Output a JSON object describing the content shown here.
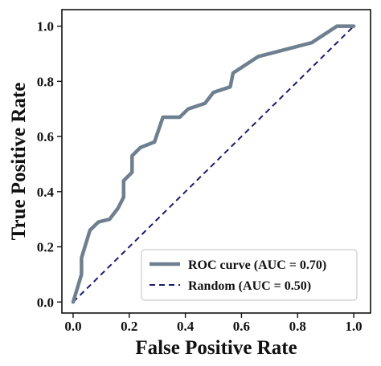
{
  "chart_data": {
    "type": "line",
    "xlabel": "False Positive Rate",
    "ylabel": "True Positive Rate",
    "xlim": [
      -0.04,
      1.06
    ],
    "ylim": [
      -0.04,
      1.06
    ],
    "xticks": [
      "0.0",
      "0.2",
      "0.4",
      "0.6",
      "0.8",
      "1.0"
    ],
    "yticks": [
      "0.0",
      "0.2",
      "0.4",
      "0.6",
      "0.8",
      "1.0"
    ],
    "grid": false,
    "legend_position": "lower-right",
    "series": [
      {
        "name": "ROC curve (AUC = 0.70)",
        "color": "#6e7f8f",
        "style": "solid",
        "x": [
          0.0,
          0.03,
          0.03,
          0.06,
          0.09,
          0.13,
          0.16,
          0.18,
          0.18,
          0.21,
          0.21,
          0.24,
          0.29,
          0.32,
          0.38,
          0.41,
          0.47,
          0.5,
          0.56,
          0.57,
          0.66,
          0.85,
          0.94,
          1.0
        ],
        "y": [
          0.0,
          0.1,
          0.16,
          0.26,
          0.29,
          0.3,
          0.34,
          0.38,
          0.44,
          0.47,
          0.53,
          0.56,
          0.58,
          0.67,
          0.67,
          0.7,
          0.72,
          0.76,
          0.78,
          0.83,
          0.89,
          0.94,
          1.0,
          1.0
        ]
      },
      {
        "name": "Random (AUC = 0.50)",
        "color": "#1b1b6e",
        "style": "dashed",
        "x": [
          0.0,
          1.0
        ],
        "y": [
          0.0,
          1.0
        ]
      }
    ]
  }
}
